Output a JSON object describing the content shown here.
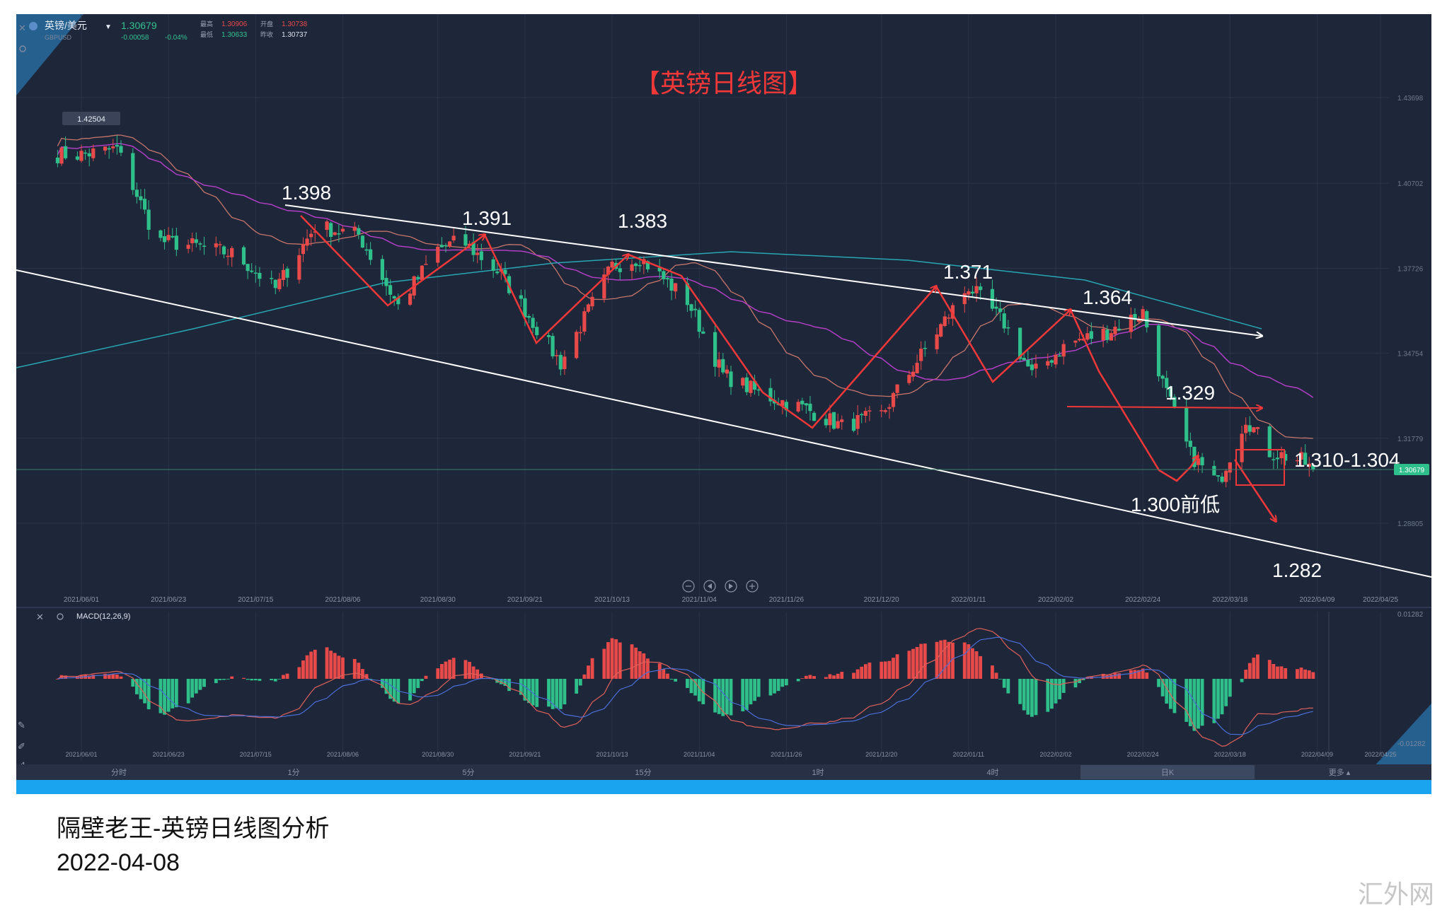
{
  "header": {
    "symbol_name": "英镑/美元",
    "symbol_code": "GBPUSD",
    "price": "1.30679",
    "change": "-0.00058",
    "change_pct": "-0.04%",
    "high_label": "最高",
    "high": "1.30906",
    "open_label": "开盘",
    "open": "1.30738",
    "low_label": "最低",
    "low": "1.30633",
    "prev_label": "昨收",
    "prev": "1.30737"
  },
  "chart_title": "【英镑日线图】",
  "price_axis": [
    "1.43698",
    "1.40702",
    "1.37726",
    "1.34754",
    "1.31779",
    "1.28805"
  ],
  "current_price_tag": "1.30679",
  "high_marker": "1.42504",
  "macd": {
    "label": "MACD(12,26,9)",
    "axis_top": "0.01282",
    "axis_bottom": "-0.01282"
  },
  "date_axis": [
    "2021/06/01",
    "2021/06/23",
    "2021/07/15",
    "2021/08/06",
    "2021/08/30",
    "2021/09/21",
    "2021/10/13",
    "2021/11/04",
    "2021/11/26",
    "2021/12/20",
    "2022/01/11",
    "2022/02/02",
    "2022/02/24",
    "2022/03/18",
    "2022/04/09",
    "2022/04/25"
  ],
  "annotations": {
    "a1": "1.398",
    "a2": "1.391",
    "a3": "1.383",
    "a4": "1.371",
    "a5": "1.364",
    "a6": "1.329",
    "a7": "1.310-1.304",
    "a8": "1.300前低",
    "a9": "1.282"
  },
  "timeframes": [
    "分时",
    "1分",
    "5分",
    "15分",
    "1时",
    "4时",
    "日K",
    "更多"
  ],
  "active_timeframe": "日K",
  "caption": {
    "line1": "隔壁老王-英镑日线图分析",
    "line2": "2022-04-08"
  },
  "watermark": "汇外网",
  "colors": {
    "background": "#1e2639",
    "up": "#e84a4a",
    "down": "#2fbf8a",
    "annotation_red": "#f03838",
    "bottom_bar": "#1aa3ee"
  },
  "chart_data": {
    "type": "candlestick",
    "title": "【英镑日线图】",
    "symbol": "GBPUSD",
    "timeframe": "日K",
    "x_range": [
      "2021/06/01",
      "2022/04/25"
    ],
    "y_range": [
      1.282,
      1.43698
    ],
    "key_levels": [
      {
        "date": "2021/08/06",
        "value": 1.398,
        "label": "1.398"
      },
      {
        "date": "2021/08/30",
        "value": 1.391,
        "label": "1.391"
      },
      {
        "date": "2021/10/13",
        "value": 1.383,
        "label": "1.383"
      },
      {
        "date": "2022/01/11",
        "value": 1.371,
        "label": "1.371"
      },
      {
        "date": "2022/02/24",
        "value": 1.364,
        "label": "1.364"
      },
      {
        "date": "2022/03/18",
        "value": 1.329,
        "label": "1.329"
      },
      {
        "date": "2022/04/09",
        "value": 1.307,
        "label": "1.310-1.304"
      },
      {
        "date": "2022/03/18",
        "value": 1.3,
        "label": "1.300前低"
      },
      {
        "date": "2022/04/25",
        "value": 1.282,
        "label": "1.282"
      }
    ],
    "close_path": [
      [
        "2021/06/01",
        1.417
      ],
      [
        "2021/06/10",
        1.419
      ],
      [
        "2021/06/20",
        1.387
      ],
      [
        "2021/06/30",
        1.385
      ],
      [
        "2021/07/10",
        1.382
      ],
      [
        "2021/07/20",
        1.37
      ],
      [
        "2021/07/30",
        1.392
      ],
      [
        "2021/08/10",
        1.389
      ],
      [
        "2021/08/20",
        1.364
      ],
      [
        "2021/08/30",
        1.384
      ],
      [
        "2021/09/05",
        1.387
      ],
      [
        "2021/09/15",
        1.375
      ],
      [
        "2021/09/30",
        1.344
      ],
      [
        "2021/10/13",
        1.378
      ],
      [
        "2021/10/20",
        1.381
      ],
      [
        "2021/11/01",
        1.366
      ],
      [
        "2021/11/10",
        1.34
      ],
      [
        "2021/11/20",
        1.333
      ],
      [
        "2021/12/01",
        1.328
      ],
      [
        "2021/12/10",
        1.322
      ],
      [
        "2021/12/20",
        1.326
      ],
      [
        "2022/01/01",
        1.351
      ],
      [
        "2022/01/11",
        1.371
      ],
      [
        "2022/01/20",
        1.358
      ],
      [
        "2022/01/27",
        1.34
      ],
      [
        "2022/02/05",
        1.351
      ],
      [
        "2022/02/15",
        1.355
      ],
      [
        "2022/02/24",
        1.362
      ],
      [
        "2022/03/01",
        1.337
      ],
      [
        "2022/03/08",
        1.312
      ],
      [
        "2022/03/15",
        1.302
      ],
      [
        "2022/03/22",
        1.325
      ],
      [
        "2022/03/28",
        1.313
      ],
      [
        "2022/04/05",
        1.31
      ],
      [
        "2022/04/08",
        1.30679
      ]
    ],
    "macd_params": [
      12,
      26,
      9
    ],
    "macd_range": [
      -0.01282,
      0.01282
    ]
  }
}
